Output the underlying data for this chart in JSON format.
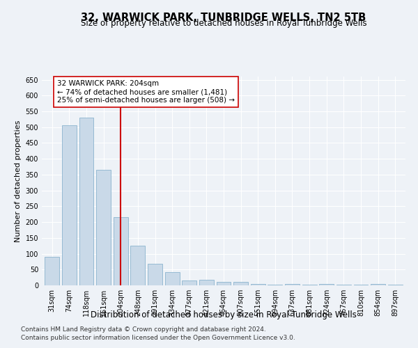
{
  "title": "32, WARWICK PARK, TUNBRIDGE WELLS, TN2 5TB",
  "subtitle": "Size of property relative to detached houses in Royal Tunbridge Wells",
  "xlabel": "Distribution of detached houses by size in Royal Tunbridge Wells",
  "ylabel": "Number of detached properties",
  "footer1": "Contains HM Land Registry data © Crown copyright and database right 2024.",
  "footer2": "Contains public sector information licensed under the Open Government Licence v3.0.",
  "categories": [
    "31sqm",
    "74sqm",
    "118sqm",
    "161sqm",
    "204sqm",
    "248sqm",
    "291sqm",
    "334sqm",
    "377sqm",
    "421sqm",
    "464sqm",
    "507sqm",
    "551sqm",
    "594sqm",
    "637sqm",
    "681sqm",
    "724sqm",
    "767sqm",
    "810sqm",
    "854sqm",
    "897sqm"
  ],
  "values": [
    90,
    505,
    530,
    365,
    215,
    125,
    68,
    42,
    15,
    18,
    10,
    10,
    5,
    3,
    5,
    2,
    5,
    2,
    2,
    5,
    2
  ],
  "bar_color": "#c9d9e8",
  "bar_edge_color": "#7aaac8",
  "red_line_index": 4,
  "ylim": [
    0,
    660
  ],
  "yticks": [
    0,
    50,
    100,
    150,
    200,
    250,
    300,
    350,
    400,
    450,
    500,
    550,
    600,
    650
  ],
  "annotation_text": "32 WARWICK PARK: 204sqm\n← 74% of detached houses are smaller (1,481)\n25% of semi-detached houses are larger (508) →",
  "annotation_box_color": "#ffffff",
  "annotation_box_edgecolor": "#cc0000",
  "bg_color": "#eef2f7",
  "grid_color": "#ffffff",
  "title_fontsize": 10.5,
  "subtitle_fontsize": 8.5,
  "xlabel_fontsize": 8.5,
  "ylabel_fontsize": 8,
  "tick_fontsize": 7,
  "annotation_fontsize": 7.5,
  "footer_fontsize": 6.5
}
